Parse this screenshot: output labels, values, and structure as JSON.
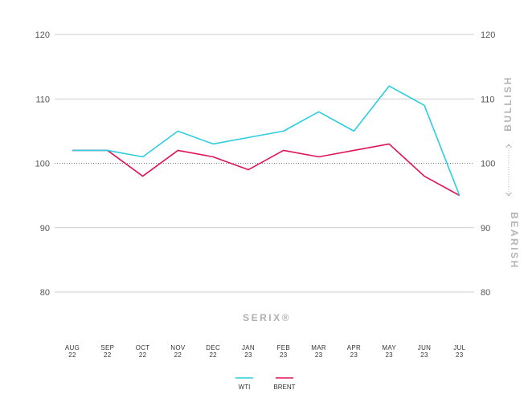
{
  "chart_data": {
    "type": "line",
    "title": "",
    "watermark": "SERIX®",
    "categories": [
      [
        "AUG",
        "22"
      ],
      [
        "SEP",
        "22"
      ],
      [
        "OCT",
        "22"
      ],
      [
        "NOV",
        "22"
      ],
      [
        "DEC",
        "22"
      ],
      [
        "JAN",
        "23"
      ],
      [
        "FEB",
        "23"
      ],
      [
        "MAR",
        "23"
      ],
      [
        "APR",
        "23"
      ],
      [
        "MAY",
        "23"
      ],
      [
        "JUN",
        "23"
      ],
      [
        "JUL",
        "23"
      ]
    ],
    "series": [
      {
        "name": "WTI",
        "color": "#2ccde0",
        "values": [
          102,
          102,
          101,
          105,
          103,
          104,
          105,
          108,
          105,
          112,
          109,
          95
        ]
      },
      {
        "name": "BRENT",
        "color": "#e0145a",
        "values": [
          102,
          102,
          98,
          102,
          101,
          99,
          102,
          101,
          102,
          103,
          98,
          95
        ]
      }
    ],
    "ylim": [
      80,
      120
    ],
    "yticks": [
      80,
      90,
      100,
      110,
      120
    ],
    "reference_line": 100,
    "grid": true,
    "right_axis": true,
    "side_labels": {
      "upper": "BULLISH",
      "lower": "BEARISH"
    },
    "legend_position": "bottom-center",
    "xlabel": "",
    "ylabel": ""
  }
}
